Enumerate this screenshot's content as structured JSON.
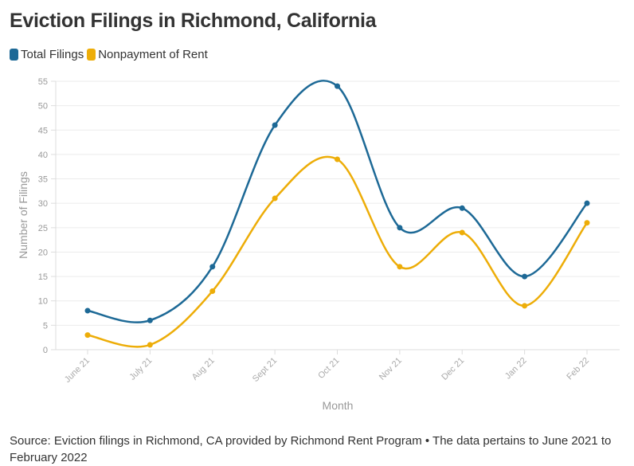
{
  "chart_data": {
    "type": "line",
    "title": "Eviction Filings in Richmond, California",
    "xlabel": "Month",
    "ylabel": "Number of Filings",
    "categories": [
      "June 21",
      "July 21",
      "Aug 21",
      "Sept 21",
      "Oct 21",
      "Nov 21",
      "Dec 21",
      "Jan 22",
      "Feb 22"
    ],
    "ylim": [
      0,
      55
    ],
    "yticks": [
      0,
      5,
      10,
      15,
      20,
      25,
      30,
      35,
      40,
      45,
      50,
      55
    ],
    "grid": true,
    "legend_position": "top-left",
    "smooth": true,
    "series": [
      {
        "name": "Total Filings",
        "color": "#1d6996",
        "values": [
          8,
          6,
          17,
          46,
          54,
          25,
          29,
          15,
          30
        ]
      },
      {
        "name": "Nonpayment of Rent",
        "color": "#edad08",
        "values": [
          3,
          1,
          12,
          31,
          39,
          17,
          24,
          9,
          26
        ]
      }
    ]
  },
  "source": "Source: Eviction filings in Richmond, CA provided by Richmond Rent Program • The data pertains to June 2021 to February 2022"
}
